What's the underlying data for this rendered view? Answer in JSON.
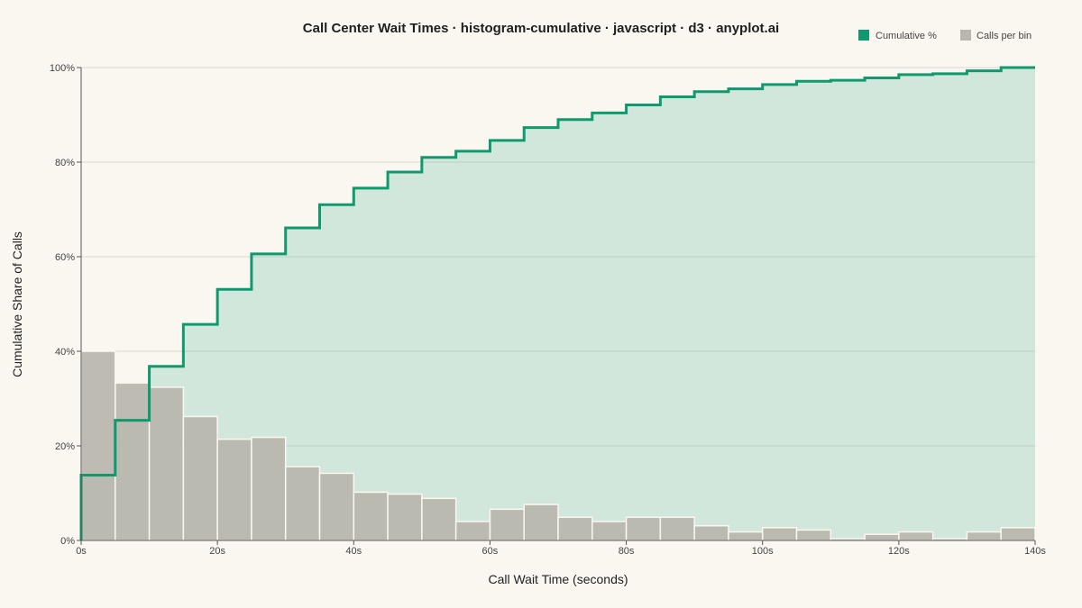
{
  "chart_data": {
    "type": "histogram-cumulative",
    "title": "Call Center Wait Times · histogram-cumulative · javascript · d3 · anyplot.ai",
    "xlabel": "Call Wait Time (seconds)",
    "ylabel": "Cumulative Share of Calls",
    "x_range": [
      0,
      140
    ],
    "y_range": [
      0,
      100
    ],
    "x_ticks": [
      {
        "value": 0,
        "label": "0s"
      },
      {
        "value": 20,
        "label": "20s"
      },
      {
        "value": 40,
        "label": "40s"
      },
      {
        "value": 60,
        "label": "60s"
      },
      {
        "value": 80,
        "label": "80s"
      },
      {
        "value": 100,
        "label": "100s"
      },
      {
        "value": 120,
        "label": "120s"
      },
      {
        "value": 140,
        "label": "140s"
      }
    ],
    "y_ticks": [
      {
        "value": 0,
        "label": "0%"
      },
      {
        "value": 20,
        "label": "20%"
      },
      {
        "value": 40,
        "label": "40%"
      },
      {
        "value": 60,
        "label": "60%"
      },
      {
        "value": 80,
        "label": "80%"
      },
      {
        "value": 100,
        "label": "100%"
      }
    ],
    "grid": true,
    "legend_position": "top-right",
    "legend": [
      {
        "label": "Cumulative %",
        "color": "#0E9A6E"
      },
      {
        "label": "Calls per bin",
        "color": "#B8B6AD"
      }
    ],
    "bin_width": 5,
    "bin_starts": [
      0,
      5,
      10,
      15,
      20,
      25,
      30,
      35,
      40,
      45,
      50,
      55,
      60,
      65,
      70,
      75,
      80,
      85,
      90,
      95,
      100,
      105,
      110,
      115,
      120,
      125,
      130,
      135
    ],
    "bin_heights_scaled_pct": [
      40.0,
      33.3,
      32.4,
      26.2,
      21.4,
      21.8,
      15.6,
      14.2,
      10.2,
      9.8,
      8.9,
      4.0,
      6.6,
      7.6,
      4.9,
      4.0,
      4.9,
      4.9,
      3.1,
      1.8,
      2.7,
      2.2,
      0.4,
      1.3,
      1.8,
      0.4,
      1.8,
      2.7
    ],
    "cumulative_pct": [
      0,
      13.8,
      25.4,
      36.8,
      45.7,
      53.1,
      60.6,
      66.1,
      71.0,
      74.5,
      77.9,
      81.0,
      82.3,
      84.6,
      87.3,
      89.0,
      90.4,
      92.1,
      93.8,
      94.9,
      95.5,
      96.4,
      97.1,
      97.3,
      97.8,
      98.5,
      98.7,
      99.3,
      100
    ]
  },
  "colors": {
    "background": "#FAF7F1",
    "cumulative_line": "#0E9A6E",
    "cumulative_fill": "#0E9A6E",
    "bar_fill": "#B8B6AD",
    "bar_stroke": "#FAF7F1",
    "grid": "#DCD9D1",
    "axis": "#555555"
  }
}
